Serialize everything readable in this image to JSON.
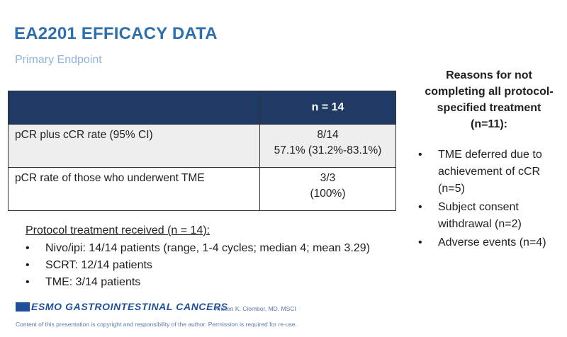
{
  "title": "EA2201 EFFICACY DATA",
  "subtitle": "Primary Endpoint",
  "table": {
    "header": [
      "",
      "n = 14"
    ],
    "rows": [
      {
        "label": "pCR plus cCR rate (95% CI)",
        "line1": "8/14",
        "line2": "57.1% (31.2%-83.1%)"
      },
      {
        "label": "pCR rate of those who underwent TME",
        "line1": "3/3",
        "line2": "(100%)"
      }
    ]
  },
  "protocol": {
    "heading": "Protocol treatment received (n = 14):",
    "items": [
      "Nivo/ipi: 14/14 patients (range, 1-4 cycles; median 4; mean 3.29)",
      "SCRT: 12/14 patients",
      "TME: 3/14 patients"
    ]
  },
  "reasons": {
    "heading": "Reasons for not completing all protocol-specified treatment (n=11):",
    "items": [
      "TME deferred due to achievement of cCR (n=5)",
      "Subject consent withdrawal (n=2)",
      "Adverse events (n=4)"
    ]
  },
  "bullet": "•",
  "footer": {
    "logo_text": "ESMO GASTROINTESTINAL CANCERS",
    "author": "Kristen K. Ciombor, MD, MSCI",
    "copyright": "Content of this presentation is copyright and responsibility of the author. Permission is required for re-use."
  },
  "colors": {
    "title": "#2e6fae",
    "subtitle": "#8fb3d9",
    "table_header": "#203a66",
    "logo": "#1f4f9c"
  }
}
